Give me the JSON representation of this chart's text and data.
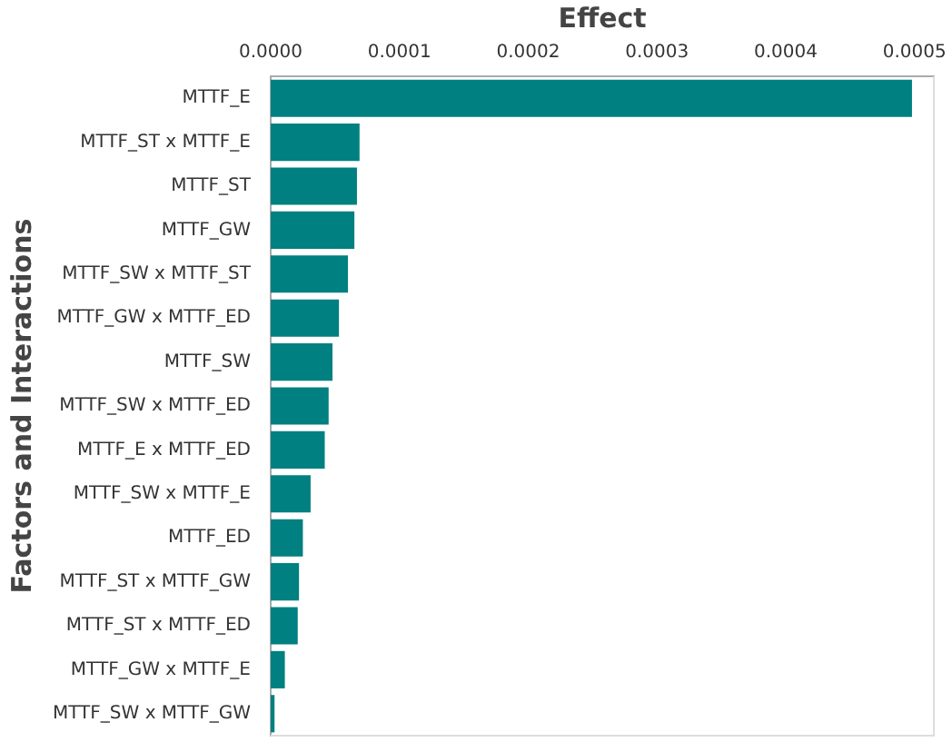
{
  "chart_data": {
    "type": "bar",
    "orientation": "horizontal",
    "xlabel": "Effect",
    "ylabel": "Factors and Interactions",
    "categories": [
      "MTTF_E",
      "MTTF_ST x MTTF_E",
      "MTTF_ST",
      "MTTF_GW",
      "MTTF_SW x MTTF_ST",
      "MTTF_GW x MTTF_ED",
      "MTTF_SW",
      "MTTF_SW x MTTF_ED",
      "MTTF_E x MTTF_ED",
      "MTTF_SW x MTTF_E",
      "MTTF_ED",
      "MTTF_ST x MTTF_GW",
      "MTTF_ST x MTTF_ED",
      "MTTF_GW x MTTF_E",
      "MTTF_SW x MTTF_GW"
    ],
    "series": [
      {
        "color": "#008080",
        "values": [
          0.000498,
          6.9e-05,
          6.7e-05,
          6.5e-05,
          6e-05,
          5.3e-05,
          4.8e-05,
          4.5e-05,
          4.2e-05,
          3.1e-05,
          2.5e-05,
          2.2e-05,
          2.1e-05,
          1.1e-05,
          3e-06
        ]
      }
    ],
    "xlim": [
      0,
      0.000515
    ],
    "xticks": [
      {
        "value": 0,
        "label": "0.0000"
      },
      {
        "value": 0.0001,
        "label": "0.0001"
      },
      {
        "value": 0.0002,
        "label": "0.0002"
      },
      {
        "value": 0.0003,
        "label": "0.0003"
      },
      {
        "value": 0.0004,
        "label": "0.0004"
      },
      {
        "value": 0.0005,
        "label": "0.0005"
      }
    ],
    "grid": false,
    "legend": false
  }
}
